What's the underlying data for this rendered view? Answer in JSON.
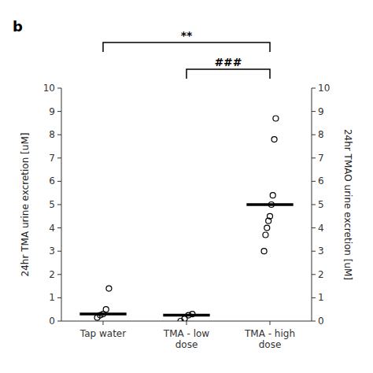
{
  "chart_data": {
    "type": "strip",
    "title": "b",
    "ylabel": "24hr TMA urine excretion [uM]",
    "y2label": "24hr TMAO urine excretion [uM]",
    "categories": [
      "Tap water",
      "TMA - low\ndose",
      "TMA - high\ndose"
    ],
    "points": [
      [
        0.15,
        0.25,
        0.3,
        0.5,
        1.4
      ],
      [
        0.0,
        0.1,
        0.25,
        0.3
      ],
      [
        3.0,
        3.7,
        4.0,
        4.3,
        4.5,
        5.0,
        5.4,
        7.8,
        8.7
      ]
    ],
    "medians": [
      0.3,
      0.25,
      5.0
    ],
    "ylim": [
      0,
      10
    ],
    "yticks": [
      0,
      1,
      2,
      3,
      4,
      5,
      6,
      7,
      8,
      9,
      10
    ],
    "y2lim": [
      0,
      10
    ],
    "y2ticks": [
      0,
      1,
      2,
      3,
      4,
      5,
      6,
      7,
      8,
      9,
      10
    ],
    "color": "#000000",
    "marker": "circle-open",
    "annotations": [
      {
        "text": "**",
        "between": [
          "Tap water",
          "TMA - high\ndose"
        ]
      },
      {
        "text": "###",
        "between": [
          "TMA - low\ndose",
          "TMA - high\ndose"
        ]
      }
    ]
  }
}
